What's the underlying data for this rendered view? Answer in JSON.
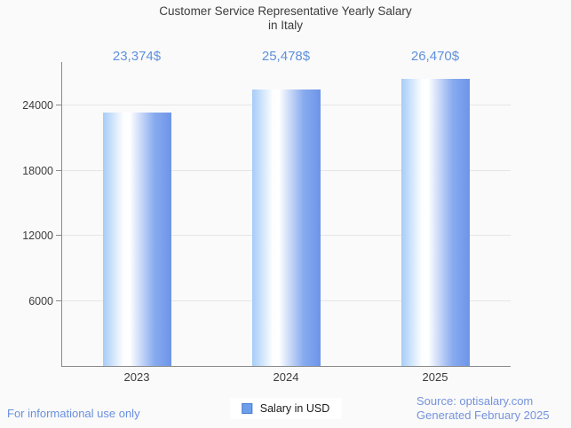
{
  "title": {
    "line1": "Customer Service Representative Yearly Salary",
    "line2": "in Italy"
  },
  "legend": {
    "label": "Salary in USD"
  },
  "footer": {
    "disclaimer": "For informational use only",
    "source_line1": "Source: optisalary.com",
    "source_line2": "Generated February 2025"
  },
  "colors": {
    "background": "#fafafa",
    "title_text": "#3c3c3c",
    "axis_line": "#8a8a8a",
    "gridline": "#e6e6e6",
    "value_label_blue": "#5f90dc",
    "footer_blue": "#6a90df",
    "source_blue": "#7593dd",
    "bar_gradient_left": "#a6ccf7",
    "bar_gradient_middle": "#ffffff",
    "bar_gradient_right": "#6d94e8",
    "legend_marker_fill": "#6d9eeb",
    "legend_marker_border": "#4a7fd0"
  },
  "chart_data": {
    "type": "bar",
    "title": "Customer Service Representative Yearly Salary in Italy",
    "categories": [
      "2023",
      "2024",
      "2025"
    ],
    "series": [
      {
        "name": "Salary in USD",
        "values": [
          23374,
          25478,
          26470
        ]
      }
    ],
    "value_labels": [
      "23,374$",
      "25,478$",
      "26,470$"
    ],
    "xlabel": "",
    "ylabel": "",
    "ylim": [
      0,
      28000
    ],
    "yticks": [
      6000,
      12000,
      18000,
      24000
    ],
    "grid": true,
    "legend_position": "bottom-center",
    "bar_style": "horizontal gradient light-blue to white to blue"
  }
}
